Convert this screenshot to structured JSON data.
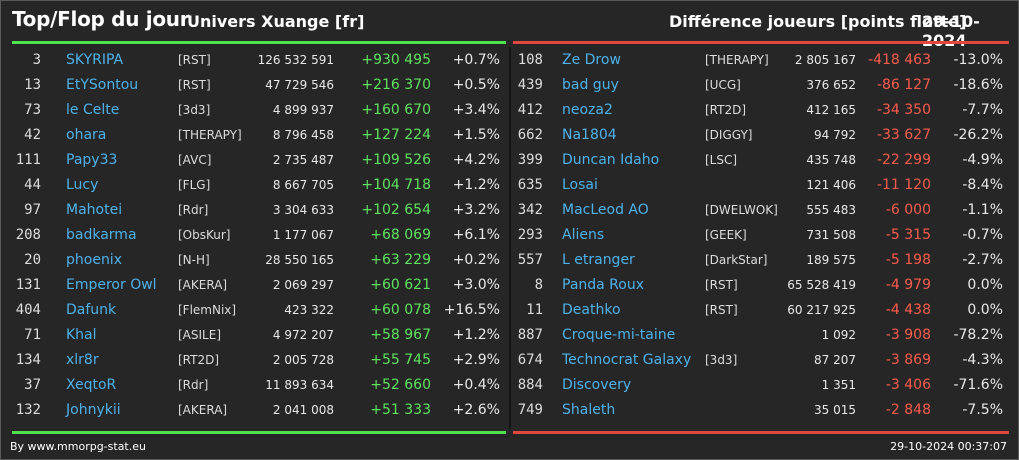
{
  "header": {
    "title": "Top/Flop du jour",
    "universe": "Univers Xuange [fr]",
    "difference": "Différence joueurs [points flotte]",
    "date": "29-10-2024"
  },
  "colors": {
    "accent_top": "#4fe14f",
    "accent_flop": "#e0473e",
    "name": "#4db2ec"
  },
  "top": [
    {
      "rank": "3",
      "name": "SKYRIPA",
      "tag": "[RST]",
      "points": "126 532 591",
      "diff": "+930 495",
      "pct": "+0.7%"
    },
    {
      "rank": "13",
      "name": "EtYSontou",
      "tag": "[RST]",
      "points": "47 729 546",
      "diff": "+216 370",
      "pct": "+0.5%"
    },
    {
      "rank": "73",
      "name": "le Celte",
      "tag": "[3d3]",
      "points": "4 899 937",
      "diff": "+160 670",
      "pct": "+3.4%"
    },
    {
      "rank": "42",
      "name": "ohara",
      "tag": "[THERAPY]",
      "points": "8 796 458",
      "diff": "+127 224",
      "pct": "+1.5%"
    },
    {
      "rank": "111",
      "name": "Papy33",
      "tag": "[AVC]",
      "points": "2 735 487",
      "diff": "+109 526",
      "pct": "+4.2%"
    },
    {
      "rank": "44",
      "name": "Lucy",
      "tag": "[FLG]",
      "points": "8 667 705",
      "diff": "+104 718",
      "pct": "+1.2%"
    },
    {
      "rank": "97",
      "name": "Mahotei",
      "tag": "[Rdr]",
      "points": "3 304 633",
      "diff": "+102 654",
      "pct": "+3.2%"
    },
    {
      "rank": "208",
      "name": "badkarma",
      "tag": "[ObsKur]",
      "points": "1 177 067",
      "diff": "+68 069",
      "pct": "+6.1%"
    },
    {
      "rank": "20",
      "name": "phoenix",
      "tag": "[N-H]",
      "points": "28 550 165",
      "diff": "+63 229",
      "pct": "+0.2%"
    },
    {
      "rank": "131",
      "name": "Emperor Owl",
      "tag": "[AKERA]",
      "points": "2 069 297",
      "diff": "+60 621",
      "pct": "+3.0%"
    },
    {
      "rank": "404",
      "name": "Dafunk",
      "tag": "[FlemNix]",
      "points": "423 322",
      "diff": "+60 078",
      "pct": "+16.5%"
    },
    {
      "rank": "71",
      "name": "Khal",
      "tag": "[ASILE]",
      "points": "4 972 207",
      "diff": "+58 967",
      "pct": "+1.2%"
    },
    {
      "rank": "134",
      "name": "xlr8r",
      "tag": "[RT2D]",
      "points": "2 005 728",
      "diff": "+55 745",
      "pct": "+2.9%"
    },
    {
      "rank": "37",
      "name": "XeqtoR",
      "tag": "[Rdr]",
      "points": "11 893 634",
      "diff": "+52 660",
      "pct": "+0.4%"
    },
    {
      "rank": "132",
      "name": "Johnykii",
      "tag": "[AKERA]",
      "points": "2 041 008",
      "diff": "+51 333",
      "pct": "+2.6%"
    }
  ],
  "flop": [
    {
      "rank": "108",
      "name": "Ze Drow",
      "tag": "[THERAPY]",
      "points": "2 805 167",
      "diff": "-418 463",
      "pct": "-13.0%"
    },
    {
      "rank": "439",
      "name": "bad guy",
      "tag": "[UCG]",
      "points": "376 652",
      "diff": "-86 127",
      "pct": "-18.6%"
    },
    {
      "rank": "412",
      "name": "neoza2",
      "tag": "[RT2D]",
      "points": "412 165",
      "diff": "-34 350",
      "pct": "-7.7%"
    },
    {
      "rank": "662",
      "name": "Na1804",
      "tag": "[DIGGY]",
      "points": "94 792",
      "diff": "-33 627",
      "pct": "-26.2%"
    },
    {
      "rank": "399",
      "name": "Duncan Idaho",
      "tag": "[LSC]",
      "points": "435 748",
      "diff": "-22 299",
      "pct": "-4.9%"
    },
    {
      "rank": "635",
      "name": "Losai",
      "tag": "",
      "points": "121 406",
      "diff": "-11 120",
      "pct": "-8.4%"
    },
    {
      "rank": "342",
      "name": "MacLeod AO",
      "tag": "[DWELWOK]",
      "points": "555 483",
      "diff": "-6 000",
      "pct": "-1.1%"
    },
    {
      "rank": "293",
      "name": "Aliens",
      "tag": "[GEEK]",
      "points": "731 508",
      "diff": "-5 315",
      "pct": "-0.7%"
    },
    {
      "rank": "557",
      "name": "L etranger",
      "tag": "[DarkStar]",
      "points": "189 575",
      "diff": "-5 198",
      "pct": "-2.7%"
    },
    {
      "rank": "8",
      "name": "Panda Roux",
      "tag": "[RST]",
      "points": "65 528 419",
      "diff": "-4 979",
      "pct": "0.0%"
    },
    {
      "rank": "11",
      "name": "Deathko",
      "tag": "[RST]",
      "points": "60 217 925",
      "diff": "-4 438",
      "pct": "0.0%"
    },
    {
      "rank": "887",
      "name": "Croque-mi-taine",
      "tag": "",
      "points": "1 092",
      "diff": "-3 908",
      "pct": "-78.2%"
    },
    {
      "rank": "674",
      "name": "Technocrat Galaxy",
      "tag": "[3d3]",
      "points": "87 207",
      "diff": "-3 869",
      "pct": "-4.3%"
    },
    {
      "rank": "884",
      "name": "Discovery",
      "tag": "",
      "points": "1 351",
      "diff": "-3 406",
      "pct": "-71.6%"
    },
    {
      "rank": "749",
      "name": "Shaleth",
      "tag": "",
      "points": "35 015",
      "diff": "-2 848",
      "pct": "-7.5%"
    }
  ],
  "footer": {
    "credit": "By www.mmorpg-stat.eu",
    "timestamp": "29-10-2024 00:37:07"
  }
}
